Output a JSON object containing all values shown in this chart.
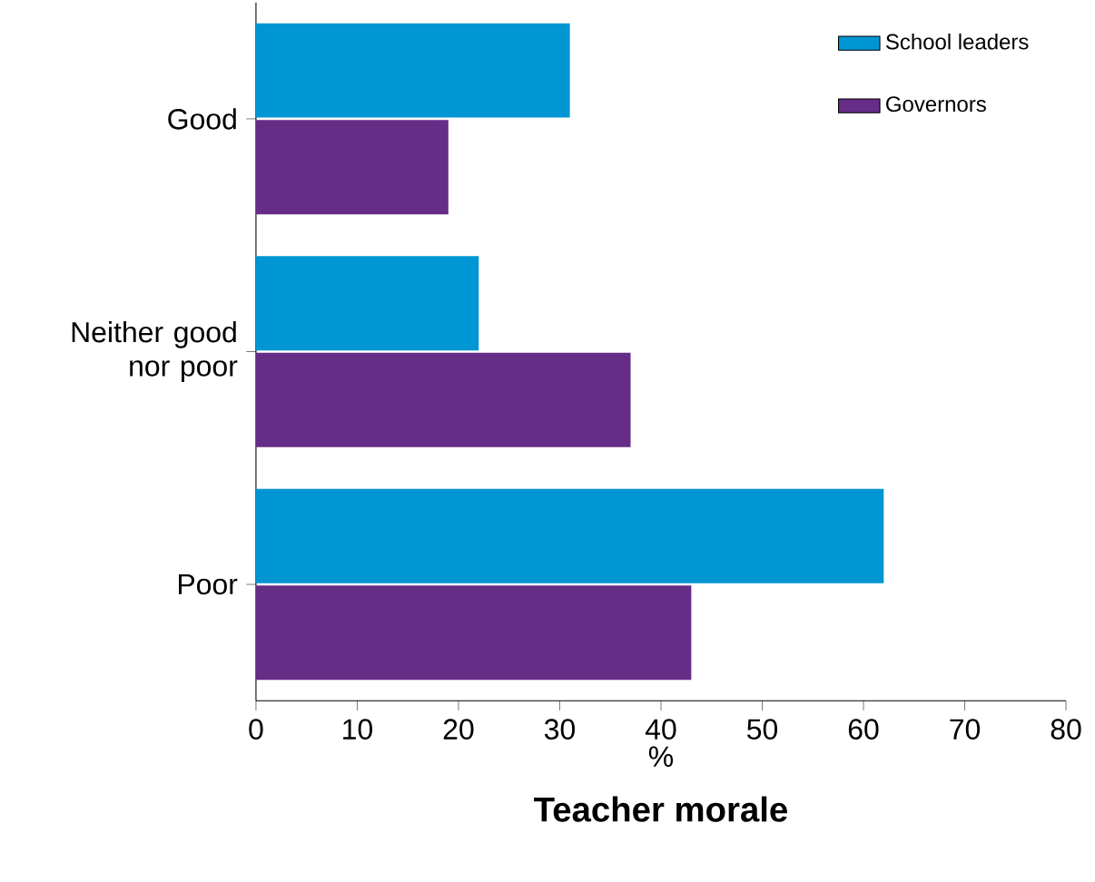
{
  "chart_data": {
    "type": "bar",
    "orientation": "horizontal",
    "title": "Teacher morale",
    "xlabel": "%",
    "categories": [
      "Good",
      "Neither good nor poor",
      "Poor"
    ],
    "series": [
      {
        "name": "School leaders",
        "color": "#0095d3",
        "values": [
          31,
          22,
          62
        ]
      },
      {
        "name": "Governors",
        "color": "#662d87",
        "values": [
          19,
          37,
          43
        ]
      }
    ],
    "xlim": [
      0,
      80
    ],
    "xticks": [
      0,
      10,
      20,
      30,
      40,
      50,
      60,
      70,
      80
    ],
    "grid": false,
    "legend": "top right"
  }
}
